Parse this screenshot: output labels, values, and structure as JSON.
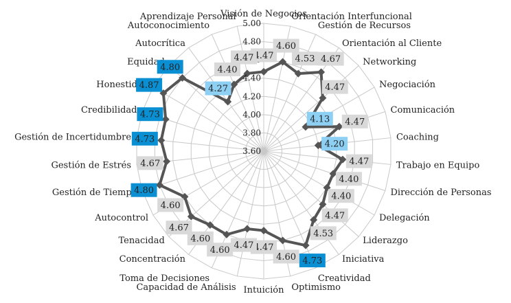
{
  "chart_data": {
    "type": "radar",
    "title": "",
    "scale": {
      "min": 3.6,
      "max": 5.0,
      "step": 0.2
    },
    "ticks": [
      "3.60",
      "3.80",
      "4.00",
      "4.20",
      "4.40",
      "4.60",
      "4.80",
      "5.00"
    ],
    "grid": true,
    "legend": "none",
    "categories": [
      "Visión de Negocios",
      "Orientación Interfuncional",
      "Gestión de Recursos",
      "Orientación al Cliente",
      "Networking",
      "Negociación",
      "Comunicación",
      "Coaching",
      "Trabajo en Equipo",
      "Dirección de Personas",
      "Delegación",
      "Liderazgo",
      "Iniciativa",
      "Creatividad",
      "Optimismo",
      "Intuición",
      "Capacidad de Análisis",
      "Toma de Decisiones",
      "Concentración",
      "Tenacidad",
      "Autocontrol",
      "Gestión de Tiempo",
      "Gestión de Estrés",
      "Gestión de Incertidumbre",
      "Credibilidad",
      "Honestidad",
      "Equidad",
      "Autocrítica",
      "Autoconocimiento",
      "Aprendizaje Personal"
    ],
    "values": [
      4.47,
      4.6,
      4.53,
      4.67,
      4.47,
      4.13,
      4.47,
      4.2,
      4.47,
      4.4,
      4.4,
      4.47,
      4.53,
      4.73,
      4.6,
      4.47,
      4.47,
      4.6,
      4.6,
      4.67,
      4.6,
      4.8,
      4.67,
      4.73,
      4.73,
      4.87,
      4.8,
      4.27,
      4.4,
      4.47
    ],
    "value_labels": [
      "4.47",
      "4.60",
      "4.53",
      "4.67",
      "4.47",
      "4.13",
      "4.47",
      "4.20",
      "4.47",
      "4.40",
      "4.40",
      "4.47",
      "4.53",
      "4.73",
      "4.60",
      "4.47",
      "4.47",
      "4.60",
      "4.60",
      "4.67",
      "4.60",
      "4.80",
      "4.67",
      "4.73",
      "4.73",
      "4.87",
      "4.80",
      "4.27",
      "4.40",
      "4.47"
    ],
    "colors": {
      "line": "#555555",
      "grid": "#c8c8c8",
      "label_default": "#d9d9d9",
      "label_low": "#8ed0f4",
      "label_high": "#0a8fd3"
    }
  }
}
